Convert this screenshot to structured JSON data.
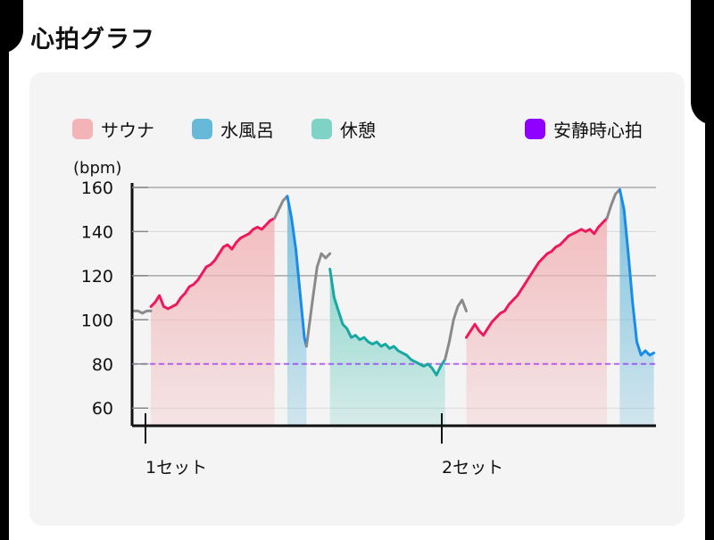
{
  "page": {
    "title": "心拍グラフ"
  },
  "chart_data": {
    "type": "line",
    "title": "",
    "xlabel": "",
    "ylabel": "(bpm)",
    "y_ticks": [
      60,
      80,
      100,
      120,
      140,
      160
    ],
    "ylim": [
      52,
      162
    ],
    "x_tick_labels": [
      "1セット",
      "2セット"
    ],
    "legend": [
      {
        "name": "サウナ",
        "color": "#f2b4b6"
      },
      {
        "name": "水風呂",
        "color": "#67b9d8"
      },
      {
        "name": "休憩",
        "color": "#7fd2c6"
      },
      {
        "name": "安静時心拍",
        "color": "#8f00ff"
      }
    ],
    "legend_position": "top",
    "resting_heart_rate": 80,
    "grid": "horizontal",
    "series": [
      {
        "name": "",
        "phase": "transition",
        "color": "#8a8a8a",
        "points": [
          [
            0,
            104
          ],
          [
            2,
            104
          ],
          [
            4,
            103
          ],
          [
            6,
            104
          ],
          [
            8,
            104
          ]
        ]
      },
      {
        "name": "サウナ",
        "phase": "sauna",
        "color": "#f0185c",
        "points": [
          [
            8,
            106
          ],
          [
            10,
            108
          ],
          [
            12,
            111
          ],
          [
            14,
            106
          ],
          [
            16,
            105
          ],
          [
            18,
            106
          ],
          [
            20,
            107
          ],
          [
            22,
            110
          ],
          [
            24,
            112
          ],
          [
            26,
            115
          ],
          [
            28,
            116
          ],
          [
            30,
            118
          ],
          [
            32,
            121
          ],
          [
            34,
            124
          ],
          [
            36,
            125
          ],
          [
            38,
            127
          ],
          [
            40,
            130
          ],
          [
            42,
            133
          ],
          [
            44,
            134
          ],
          [
            46,
            132
          ],
          [
            48,
            135
          ],
          [
            50,
            137
          ],
          [
            52,
            138
          ],
          [
            54,
            139
          ],
          [
            56,
            141
          ],
          [
            58,
            142
          ],
          [
            60,
            141
          ],
          [
            62,
            143
          ],
          [
            64,
            145
          ],
          [
            66,
            146
          ]
        ]
      },
      {
        "name": "",
        "phase": "transition",
        "color": "#8a8a8a",
        "points": [
          [
            66,
            146
          ],
          [
            68,
            150
          ],
          [
            70,
            154
          ],
          [
            72,
            156
          ]
        ]
      },
      {
        "name": "水風呂",
        "phase": "cold",
        "color": "#1a8be8",
        "points": [
          [
            72,
            156
          ],
          [
            74,
            146
          ],
          [
            76,
            132
          ],
          [
            78,
            112
          ],
          [
            80,
            92
          ],
          [
            81,
            88
          ]
        ]
      },
      {
        "name": "",
        "phase": "transition",
        "color": "#8a8a8a",
        "points": [
          [
            81,
            88
          ],
          [
            84,
            110
          ],
          [
            86,
            124
          ],
          [
            88,
            130
          ],
          [
            90,
            128
          ],
          [
            92,
            130
          ]
        ]
      },
      {
        "name": "休憩",
        "phase": "rest",
        "color": "#19a7a3",
        "points": [
          [
            92,
            123
          ],
          [
            94,
            110
          ],
          [
            96,
            104
          ],
          [
            98,
            98
          ],
          [
            100,
            96
          ],
          [
            102,
            92
          ],
          [
            104,
            93
          ],
          [
            106,
            91
          ],
          [
            108,
            92
          ],
          [
            110,
            90
          ],
          [
            112,
            89
          ],
          [
            114,
            90
          ],
          [
            116,
            88
          ],
          [
            118,
            89
          ],
          [
            120,
            87
          ],
          [
            122,
            88
          ],
          [
            124,
            86
          ],
          [
            126,
            85
          ],
          [
            128,
            84
          ],
          [
            130,
            82
          ],
          [
            132,
            81
          ],
          [
            134,
            80
          ],
          [
            136,
            79
          ],
          [
            138,
            80
          ],
          [
            140,
            78
          ],
          [
            142,
            75
          ],
          [
            144,
            79
          ],
          [
            146,
            82
          ]
        ]
      },
      {
        "name": "",
        "phase": "transition",
        "color": "#8a8a8a",
        "points": [
          [
            146,
            82
          ],
          [
            148,
            90
          ],
          [
            150,
            100
          ],
          [
            152,
            106
          ],
          [
            154,
            109
          ],
          [
            156,
            104
          ]
        ]
      },
      {
        "name": "サウナ",
        "phase": "sauna",
        "color": "#f0185c",
        "points": [
          [
            156,
            92
          ],
          [
            158,
            95
          ],
          [
            160,
            98
          ],
          [
            162,
            95
          ],
          [
            164,
            93
          ],
          [
            166,
            96
          ],
          [
            168,
            99
          ],
          [
            170,
            101
          ],
          [
            172,
            103
          ],
          [
            174,
            104
          ],
          [
            176,
            107
          ],
          [
            178,
            109
          ],
          [
            180,
            111
          ],
          [
            182,
            114
          ],
          [
            184,
            117
          ],
          [
            186,
            120
          ],
          [
            188,
            123
          ],
          [
            190,
            126
          ],
          [
            192,
            128
          ],
          [
            194,
            130
          ],
          [
            196,
            131
          ],
          [
            198,
            133
          ],
          [
            200,
            134
          ],
          [
            202,
            136
          ],
          [
            204,
            138
          ],
          [
            206,
            139
          ],
          [
            208,
            140
          ],
          [
            210,
            141
          ],
          [
            212,
            140
          ],
          [
            214,
            141
          ],
          [
            216,
            139
          ],
          [
            218,
            142
          ],
          [
            220,
            144
          ],
          [
            222,
            146
          ]
        ]
      },
      {
        "name": "",
        "phase": "transition",
        "color": "#8a8a8a",
        "points": [
          [
            222,
            146
          ],
          [
            224,
            152
          ],
          [
            226,
            157
          ],
          [
            228,
            159
          ]
        ]
      },
      {
        "name": "水風呂",
        "phase": "cold",
        "color": "#1a8be8",
        "points": [
          [
            228,
            159
          ],
          [
            230,
            150
          ],
          [
            232,
            130
          ],
          [
            234,
            108
          ],
          [
            236,
            90
          ],
          [
            238,
            84
          ],
          [
            240,
            86
          ],
          [
            242,
            84
          ],
          [
            244,
            85
          ]
        ]
      }
    ]
  }
}
